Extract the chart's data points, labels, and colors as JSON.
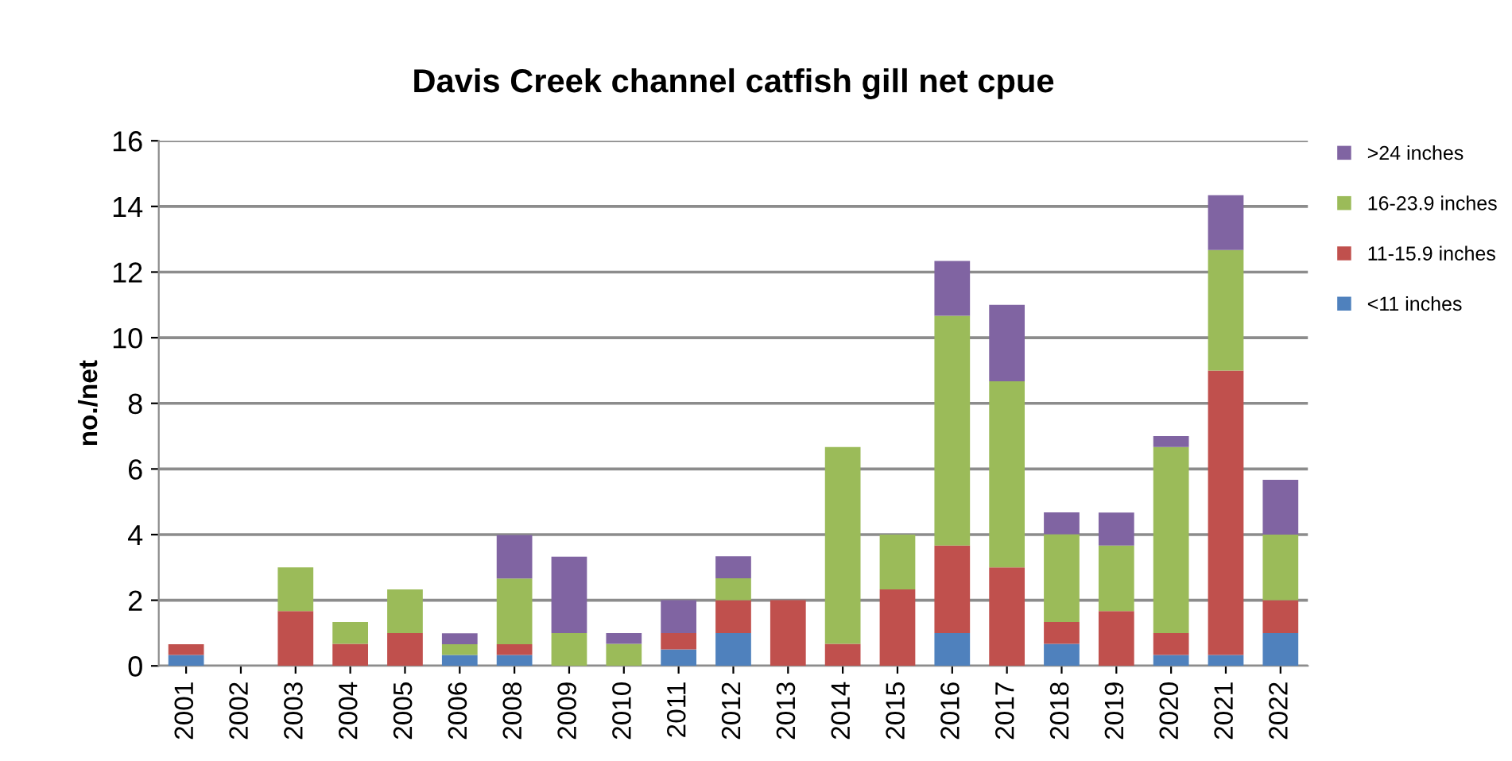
{
  "chart_data": {
    "type": "bar",
    "stacked": true,
    "title": "Davis Creek channel catfish gill net cpue",
    "ylabel": "no./net",
    "categories": [
      "2001",
      "2002",
      "2003",
      "2004",
      "2005",
      "2006",
      "2008",
      "2009",
      "2010",
      "2011",
      "2012",
      "2013",
      "2014",
      "2015",
      "2016",
      "2017",
      "2018",
      "2019",
      "2020",
      "2021",
      "2022"
    ],
    "series": [
      {
        "name": "<11 inches",
        "color": "#4f81bd",
        "values": [
          0.33,
          0,
          0,
          0,
          0,
          0.33,
          0.33,
          0,
          0,
          0.5,
          1,
          0,
          0,
          0,
          1,
          0,
          0.67,
          0,
          0.33,
          0.33,
          1
        ]
      },
      {
        "name": "11-15.9 inches",
        "color": "#c0504d",
        "values": [
          0.33,
          0,
          1.67,
          0.67,
          1,
          0,
          0.33,
          0,
          0,
          0.5,
          1,
          2,
          0.67,
          2.33,
          2.67,
          3,
          0.67,
          1.67,
          0.67,
          8.67,
          1
        ]
      },
      {
        "name": "16-23.9 inches",
        "color": "#9bbb59",
        "values": [
          0,
          0,
          1.33,
          0.67,
          1.33,
          0.33,
          2,
          1,
          0.67,
          0,
          0.67,
          0,
          6,
          1.67,
          7,
          5.67,
          2.67,
          2,
          5.67,
          3.67,
          2
        ]
      },
      {
        "name": ">24 inches",
        "color": "#8064a2",
        "values": [
          0,
          0,
          0,
          0,
          0,
          0.33,
          1.33,
          2.33,
          0.33,
          1,
          0.67,
          0,
          0,
          0,
          1.67,
          2.33,
          0.67,
          1,
          0.33,
          1.67,
          1.67
        ]
      }
    ],
    "ylim": [
      0,
      16
    ],
    "yticks": [
      0,
      2,
      4,
      6,
      8,
      10,
      12,
      14,
      16
    ],
    "grid": "y",
    "legend": "right"
  }
}
